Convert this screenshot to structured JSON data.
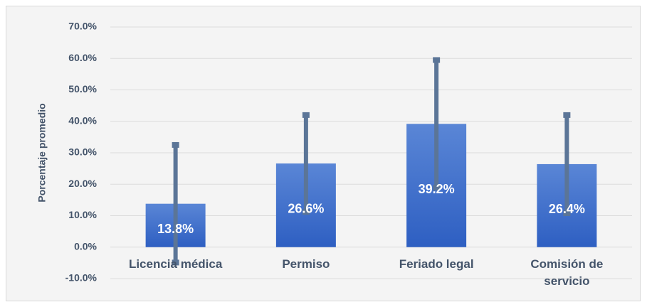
{
  "chart_data": {
    "type": "bar",
    "y_label": "Porcentaje promedio",
    "categories": [
      "Licencia médica",
      "Permiso",
      "Feriado legal",
      "Comisión de servicio"
    ],
    "values": [
      13.8,
      26.6,
      39.2,
      26.4
    ],
    "value_labels": [
      "13.8%",
      "26.6%",
      "39.2%",
      "26.4%"
    ],
    "errors": [
      18.7,
      15.4,
      20.3,
      15.6
    ],
    "color": "#4472c4",
    "error_color": "#5b7597",
    "ylim": [
      -10,
      70
    ],
    "yticks": [
      {
        "value": -10,
        "label": "-10.0%"
      },
      {
        "value": 0,
        "label": "0.0%"
      },
      {
        "value": 10,
        "label": "10.0%"
      },
      {
        "value": 20,
        "label": "20.0%"
      },
      {
        "value": 30,
        "label": "30.0%"
      },
      {
        "value": 40,
        "label": "40.0%"
      },
      {
        "value": 50,
        "label": "50.0%"
      },
      {
        "value": 60,
        "label": "60.0%"
      },
      {
        "value": 70,
        "label": "70.0%"
      }
    ],
    "grid": true
  }
}
